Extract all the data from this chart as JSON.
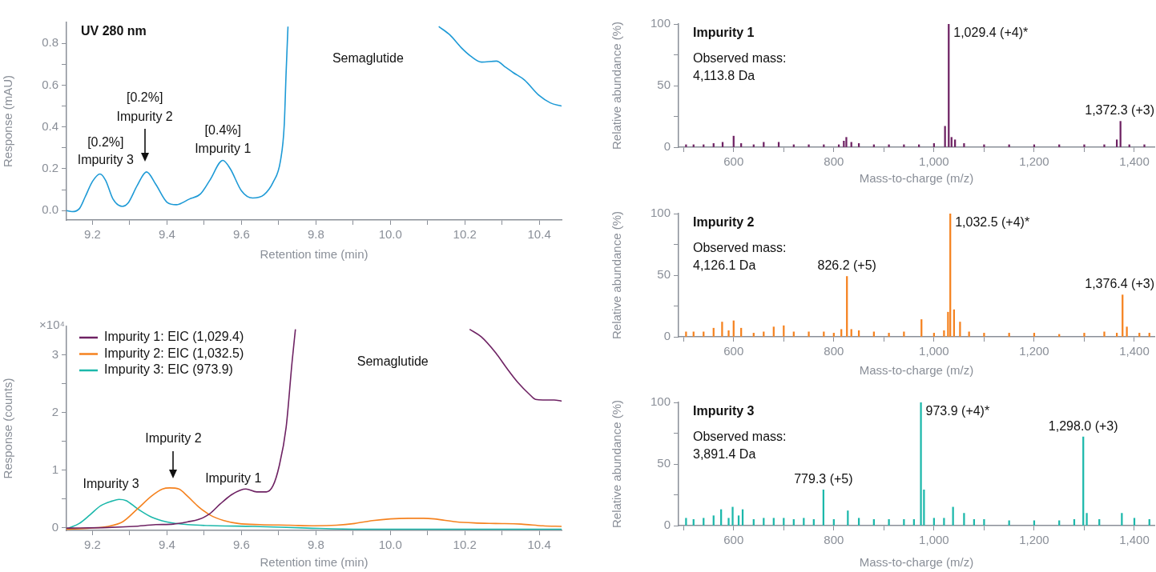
{
  "chart_data": [
    {
      "type": "line",
      "title": "UV 280 nm",
      "xlabel": "Retention time (min)",
      "ylabel": "Response (mAU)",
      "color": "#1e9ad6",
      "x": [
        9.13,
        9.145,
        9.165,
        9.18,
        9.2,
        9.22,
        9.235,
        9.255,
        9.28,
        9.295,
        9.32,
        9.345,
        9.37,
        9.4,
        9.425,
        9.46,
        9.49,
        9.515,
        9.55,
        9.57,
        9.6,
        9.63,
        9.66,
        9.685,
        9.705,
        9.715,
        9.72,
        9.725,
        9.9,
        10.13,
        10.16,
        10.19,
        10.215,
        10.245,
        10.285,
        10.31,
        10.33,
        10.36,
        10.4,
        10.43,
        10.46
      ],
      "values": [
        0,
        -0.005,
        0.01,
        0.065,
        0.14,
        0.175,
        0.145,
        0.055,
        0.02,
        0.035,
        0.12,
        0.185,
        0.125,
        0.04,
        0.028,
        0.055,
        0.08,
        0.145,
        0.24,
        0.2,
        0.095,
        0.06,
        0.075,
        0.135,
        0.24,
        0.41,
        0.66,
        0.88,
        null,
        0.88,
        0.84,
        0.78,
        0.74,
        0.71,
        0.715,
        0.685,
        0.66,
        0.625,
        0.55,
        0.515,
        0.5
      ],
      "xlim": [
        9.13,
        10.46
      ],
      "xticks": [
        9.2,
        {
          "value": 9.3,
          "label": null
        },
        9.4,
        {
          "value": 9.5,
          "label": null
        },
        9.6,
        {
          "value": 9.7,
          "label": null
        },
        9.8,
        {
          "value": 9.9,
          "label": null
        },
        {
          "value": 10,
          "label": "10.0"
        },
        {
          "value": 10.1,
          "label": null
        },
        10.2,
        {
          "value": 10.3,
          "label": null
        },
        10.4
      ],
      "ylim": [
        -0.045,
        0.9
      ],
      "yticks": [
        {
          "value": 0,
          "label": "0.0"
        },
        {
          "value": 0.1,
          "label": null
        },
        0.2,
        {
          "value": 0.3,
          "label": null
        },
        0.4,
        {
          "value": 0.5,
          "label": null
        },
        0.6,
        {
          "value": 0.7,
          "label": null
        },
        0.8
      ],
      "annotations": [
        "[0.2%]",
        "Impurity 3",
        "[0.2%]",
        "Impurity 2",
        "[0.4%]",
        "Impurity 1",
        "Semaglutide"
      ]
    },
    {
      "type": "line",
      "xlabel": "Retention time (min)",
      "ylabel": "Response (counts)",
      "legend": "top left",
      "xlim": [
        9.13,
        10.46
      ],
      "xticks": [
        9.2,
        {
          "value": 9.3,
          "label": null
        },
        9.4,
        {
          "value": 9.5,
          "label": null
        },
        9.6,
        {
          "value": 9.7,
          "label": null
        },
        9.8,
        {
          "value": 9.9,
          "label": null
        },
        {
          "value": 10,
          "label": "10.0"
        },
        {
          "value": 10.1,
          "label": null
        },
        10.2,
        {
          "value": 10.3,
          "label": null
        },
        10.4
      ],
      "ylim": [
        -0.05,
        3.5
      ],
      "yticks": [
        0,
        {
          "value": 0.5,
          "label": null
        },
        1,
        {
          "value": 1.5,
          "label": null
        },
        2,
        {
          "value": 2.5,
          "label": null
        },
        3
      ],
      "series": [
        {
          "name": "Impurity 1: EIC (1,029.4)",
          "color": "#6e2263",
          "x": [
            9.13,
            9.24,
            9.31,
            9.37,
            9.417,
            9.456,
            9.485,
            9.515,
            9.543,
            9.573,
            9.597,
            9.612,
            9.641,
            9.667,
            9.685,
            9.701,
            9.72,
            9.736,
            9.745,
            10.0,
            10.213,
            10.244,
            10.283,
            10.312,
            10.342,
            10.375,
            10.39,
            10.41,
            10.44,
            10.46
          ],
          "values": [
            -0.01,
            0,
            0.02,
            0.05,
            0.06,
            0.1,
            0.14,
            0.24,
            0.41,
            0.57,
            0.65,
            0.67,
            0.62,
            0.62,
            0.73,
            1.06,
            1.74,
            2.88,
            3.45,
            null,
            3.45,
            3.32,
            3.04,
            2.78,
            2.53,
            2.31,
            2.23,
            2.22,
            2.22,
            2.2
          ]
        },
        {
          "name": "Impurity 2: EIC (1,032.5)",
          "color": "#f5821f",
          "x": [
            9.13,
            9.193,
            9.242,
            9.281,
            9.32,
            9.359,
            9.388,
            9.407,
            9.432,
            9.456,
            9.485,
            9.515,
            9.553,
            9.592,
            9.65,
            9.728,
            9.797,
            9.855,
            9.904,
            9.952,
            10.0,
            10.05,
            10.089,
            10.118,
            10.176,
            10.225,
            10.283,
            10.351,
            10.41,
            10.46
          ],
          "values": [
            -0.03,
            -0.01,
            0.02,
            0.1,
            0.32,
            0.55,
            0.67,
            0.69,
            0.67,
            0.54,
            0.36,
            0.22,
            0.12,
            0.07,
            0.05,
            0.04,
            0.03,
            0.04,
            0.07,
            0.12,
            0.15,
            0.16,
            0.16,
            0.15,
            0.1,
            0.08,
            0.07,
            0.06,
            0.03,
            0.02
          ]
        },
        {
          "name": "Impurity 3: EIC (973.9)",
          "color": "#1cb8ab",
          "x": [
            9.135,
            9.164,
            9.193,
            9.222,
            9.252,
            9.271,
            9.29,
            9.32,
            9.359,
            9.398,
            9.456,
            9.534,
            9.631,
            9.777,
            9.923,
            10.02,
            10.166,
            10.312,
            10.46
          ],
          "values": [
            -0.01,
            0.07,
            0.22,
            0.38,
            0.46,
            0.49,
            0.47,
            0.33,
            0.18,
            0.1,
            0.05,
            0.03,
            0.02,
            -0.01,
            -0.03,
            -0.03,
            -0.03,
            -0.03,
            -0.03
          ]
        }
      ],
      "annotations": [
        "×10⁴",
        "Impurity 3",
        "Impurity 2",
        "Impurity 1",
        "Semaglutide"
      ]
    },
    {
      "type": "bar",
      "title": "Impurity 1",
      "xlabel": "Mass-to-charge (m/z)",
      "ylabel": "Relative abundance (%)",
      "color": "#6e2263",
      "x": [
        505,
        520,
        540,
        560,
        578,
        600,
        615,
        640,
        660,
        690,
        720,
        750,
        780,
        810,
        820,
        825,
        835,
        850,
        880,
        910,
        940,
        970,
        1000,
        1022,
        1029.4,
        1035,
        1042,
        1060,
        1100,
        1150,
        1200,
        1250,
        1300,
        1340,
        1365,
        1372.3,
        1390,
        1420
      ],
      "values": [
        2,
        2,
        2,
        3,
        4,
        9,
        3,
        2,
        4,
        4,
        2,
        2,
        2,
        2,
        5,
        8,
        4,
        3,
        2,
        2,
        2,
        2,
        3,
        17,
        100,
        8,
        6,
        3,
        2,
        2,
        2,
        2,
        2,
        2,
        6,
        21,
        2,
        2
      ],
      "xlim": [
        490,
        1440
      ],
      "xticks": [
        {
          "value": 500,
          "label": null
        },
        600,
        {
          "value": 700,
          "label": null
        },
        800,
        {
          "value": 900,
          "label": null
        },
        {
          "value": 1000,
          "label": "1,000"
        },
        {
          "value": 1100,
          "label": null
        },
        {
          "value": 1200,
          "label": "1,200"
        },
        {
          "value": 1300,
          "label": null
        },
        {
          "value": 1400,
          "label": "1,400"
        }
      ],
      "ylim": [
        0,
        100
      ],
      "yticks": [
        0,
        {
          "value": 25,
          "label": null
        },
        50,
        {
          "value": 75,
          "label": null
        },
        100
      ],
      "annotations": [
        "Observed mass:",
        "4,113.8 Da",
        {
          "text": "1,029.4 (+4)*",
          "x": 1029.4,
          "y": 100
        },
        {
          "text": "1,372.3 (+3)",
          "x": 1372.3,
          "y": 21
        }
      ]
    },
    {
      "type": "bar",
      "title": "Impurity 2",
      "xlabel": "Mass-to-charge (m/z)",
      "ylabel": "Relative abundance (%)",
      "color": "#f5821f",
      "x": [
        505,
        520,
        540,
        560,
        577,
        590,
        600,
        615,
        640,
        660,
        680,
        700,
        720,
        750,
        780,
        800,
        815,
        826.2,
        835,
        850,
        880,
        910,
        940,
        975,
        1000,
        1020,
        1028,
        1032.5,
        1040,
        1052,
        1070,
        1100,
        1150,
        1200,
        1250,
        1300,
        1340,
        1365,
        1376.4,
        1385,
        1410,
        1430
      ],
      "values": [
        4,
        4,
        4,
        7,
        12,
        5,
        13,
        7,
        3,
        4,
        8,
        9,
        4,
        4,
        4,
        3,
        6,
        49,
        6,
        5,
        4,
        3,
        4,
        14,
        3,
        5,
        20,
        100,
        22,
        12,
        4,
        3,
        3,
        3,
        2,
        3,
        4,
        3,
        34,
        8,
        3,
        3
      ],
      "xlim": [
        490,
        1440
      ],
      "xticks": [
        {
          "value": 500,
          "label": null
        },
        600,
        {
          "value": 700,
          "label": null
        },
        800,
        {
          "value": 900,
          "label": null
        },
        {
          "value": 1000,
          "label": "1,000"
        },
        {
          "value": 1100,
          "label": null
        },
        {
          "value": 1200,
          "label": "1,200"
        },
        {
          "value": 1300,
          "label": null
        },
        {
          "value": 1400,
          "label": "1,400"
        }
      ],
      "ylim": [
        0,
        100
      ],
      "yticks": [
        0,
        {
          "value": 25,
          "label": null
        },
        50,
        {
          "value": 75,
          "label": null
        },
        100
      ],
      "annotations": [
        "Observed mass:",
        "4,126.1 Da",
        {
          "text": "826.2 (+5)",
          "x": 826.2,
          "y": 49
        },
        {
          "text": "1,032.5 (+4)*",
          "x": 1032.5,
          "y": 100
        },
        {
          "text": "1,376.4 (+3)",
          "x": 1376.4,
          "y": 34
        }
      ]
    },
    {
      "type": "bar",
      "title": "Impurity 3",
      "xlabel": "Mass-to-charge (m/z)",
      "ylabel": "Relative abundance (%)",
      "color": "#1cb8ab",
      "x": [
        505,
        520,
        540,
        560,
        575,
        590,
        598,
        610,
        618,
        640,
        660,
        680,
        700,
        720,
        740,
        760,
        779.3,
        800,
        828,
        850,
        880,
        910,
        940,
        960,
        973.9,
        980,
        1000,
        1020,
        1038,
        1060,
        1080,
        1100,
        1150,
        1200,
        1250,
        1280,
        1298.0,
        1305,
        1330,
        1375,
        1400,
        1430
      ],
      "values": [
        6,
        5,
        6,
        8,
        13,
        6,
        15,
        8,
        13,
        5,
        6,
        6,
        6,
        5,
        6,
        5,
        29,
        5,
        12,
        6,
        5,
        5,
        5,
        5,
        100,
        29,
        6,
        6,
        15,
        10,
        5,
        5,
        4,
        4,
        4,
        5,
        72,
        10,
        5,
        10,
        6,
        5
      ],
      "xlim": [
        490,
        1440
      ],
      "xticks": [
        {
          "value": 500,
          "label": null
        },
        600,
        {
          "value": 700,
          "label": null
        },
        800,
        {
          "value": 900,
          "label": null
        },
        {
          "value": 1000,
          "label": "1,000"
        },
        {
          "value": 1100,
          "label": null
        },
        {
          "value": 1200,
          "label": "1,200"
        },
        {
          "value": 1300,
          "label": null
        },
        {
          "value": 1400,
          "label": "1,400"
        }
      ],
      "ylim": [
        0,
        100
      ],
      "yticks": [
        0,
        {
          "value": 25,
          "label": null
        },
        50,
        {
          "value": 75,
          "label": null
        },
        100
      ],
      "annotations": [
        "Observed mass:",
        "3,891.4 Da",
        {
          "text": "779.3 (+5)",
          "x": 779.3,
          "y": 29
        },
        {
          "text": "973.9 (+4)*",
          "x": 973.9,
          "y": 100
        },
        {
          "text": "1,298.0 (+3)",
          "x": 1298,
          "y": 72
        }
      ]
    }
  ]
}
